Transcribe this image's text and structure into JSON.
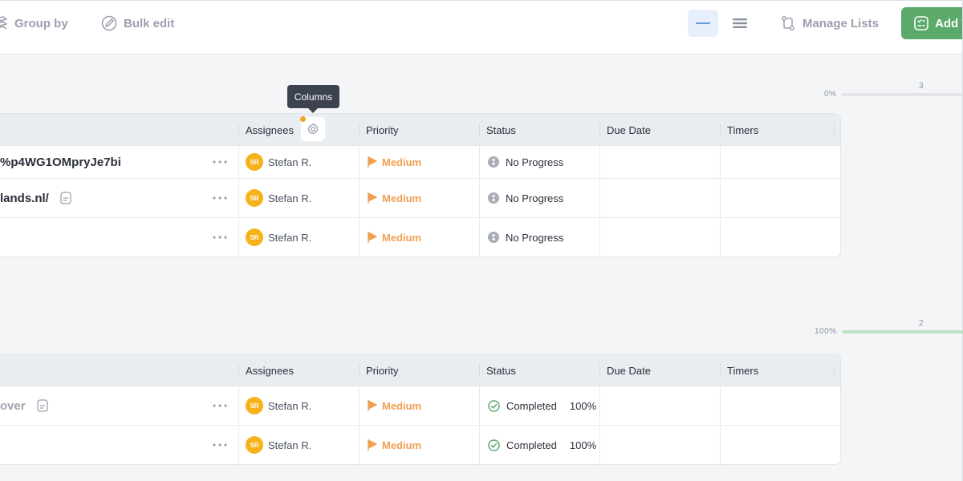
{
  "toolbar": {
    "group_by": "Group by",
    "bulk_edit": "Bulk edit",
    "manage_lists": "Manage Lists",
    "add_task": "Add T"
  },
  "tooltip": {
    "columns": "Columns"
  },
  "groups": [
    {
      "progress_percent": "0%",
      "progress_value": 0,
      "task_count": "3",
      "columns": [
        "Assignees",
        "Priority",
        "Status",
        "Due Date",
        "Timers"
      ],
      "rows": [
        {
          "name": "%p4WG1OMpryJe7bi",
          "has_note": false,
          "assignee_initials": "SR",
          "assignee": "Stefan R.",
          "priority": "Medium",
          "status": "No Progress",
          "status_pct": ""
        },
        {
          "name": "lands.nl/",
          "has_note": true,
          "assignee_initials": "SR",
          "assignee": "Stefan R.",
          "priority": "Medium",
          "status": "No Progress",
          "status_pct": ""
        },
        {
          "name": "",
          "has_note": false,
          "assignee_initials": "SR",
          "assignee": "Stefan R.",
          "priority": "Medium",
          "status": "No Progress",
          "status_pct": ""
        }
      ]
    },
    {
      "progress_percent": "100%",
      "progress_value": 100,
      "task_count": "2",
      "columns": [
        "Assignees",
        "Priority",
        "Status",
        "Due Date",
        "Timers"
      ],
      "rows": [
        {
          "name": "over",
          "has_note": true,
          "assignee_initials": "SR",
          "assignee": "Stefan R.",
          "priority": "Medium",
          "status": "Completed",
          "status_pct": "100%"
        },
        {
          "name": "",
          "has_note": false,
          "assignee_initials": "SR",
          "assignee": "Stefan R.",
          "priority": "Medium",
          "status": "Completed",
          "status_pct": "100%"
        }
      ]
    }
  ],
  "colors": {
    "accent_green": "#5ba96b",
    "priority_orange": "#f0a052",
    "avatar_yellow": "#f6b21a",
    "completed_green": "#5ba96b"
  },
  "icons": [
    "group-icon",
    "edit-icon",
    "list-view-icon",
    "compact-view-icon",
    "manage-lists-icon",
    "add-task-icon",
    "gear-icon",
    "more-dots-icon",
    "note-icon",
    "flag-icon",
    "hourglass-icon",
    "check-circle-icon"
  ]
}
